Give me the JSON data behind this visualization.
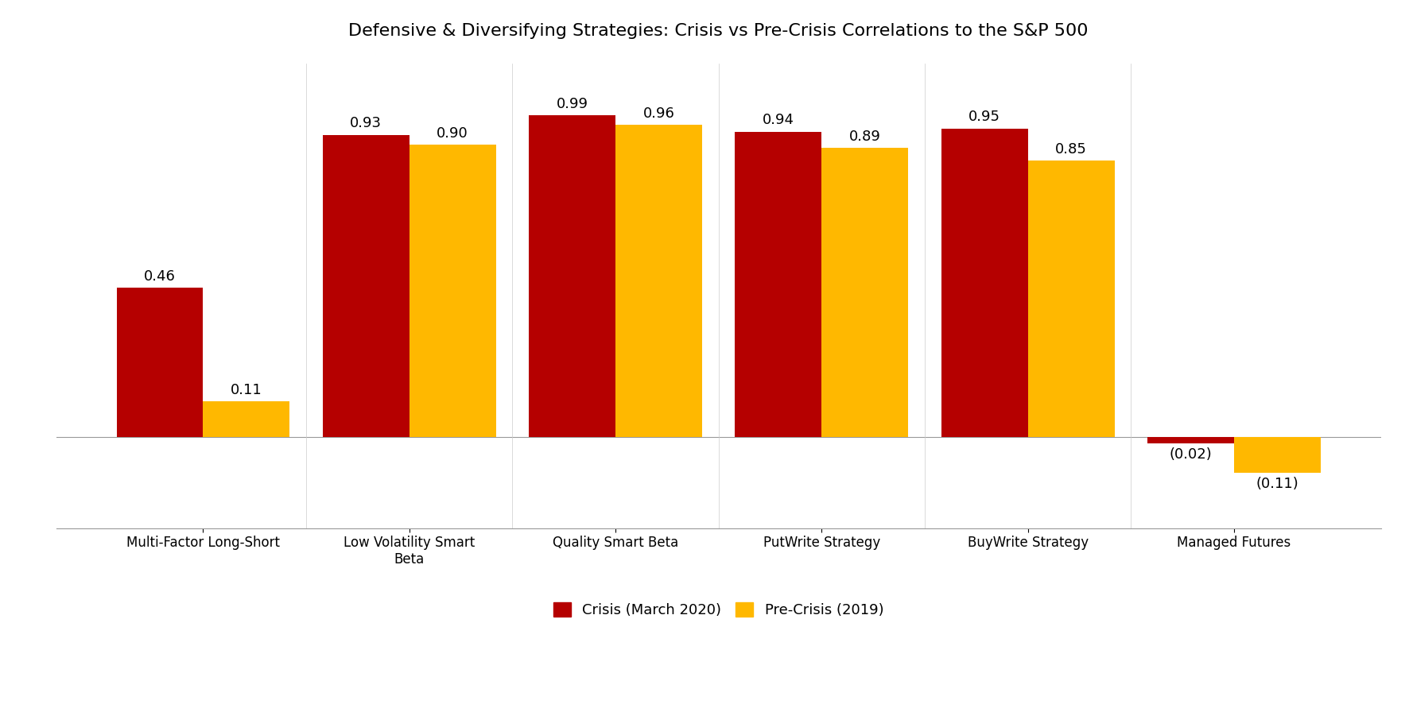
{
  "title": "Defensive & Diversifying Strategies: Crisis vs Pre-Crisis Correlations to the S&P 500",
  "categories": [
    "Multi-Factor Long-Short",
    "Low Volatility Smart\nBeta",
    "Quality Smart Beta",
    "PutWrite Strategy",
    "BuyWrite Strategy",
    "Managed Futures"
  ],
  "crisis_values": [
    0.46,
    0.93,
    0.99,
    0.94,
    0.95,
    -0.02
  ],
  "precrisis_values": [
    0.11,
    0.9,
    0.96,
    0.89,
    0.85,
    -0.11
  ],
  "crisis_color": "#B50000",
  "precrisis_color": "#FFB800",
  "crisis_label": "Crisis (March 2020)",
  "precrisis_label": "Pre-Crisis (2019)",
  "bar_width": 0.42,
  "title_fontsize": 16,
  "label_fontsize": 13,
  "tick_fontsize": 12,
  "legend_fontsize": 13,
  "background_color": "#FFFFFF",
  "ylim_min": -0.28,
  "ylim_max": 1.15
}
